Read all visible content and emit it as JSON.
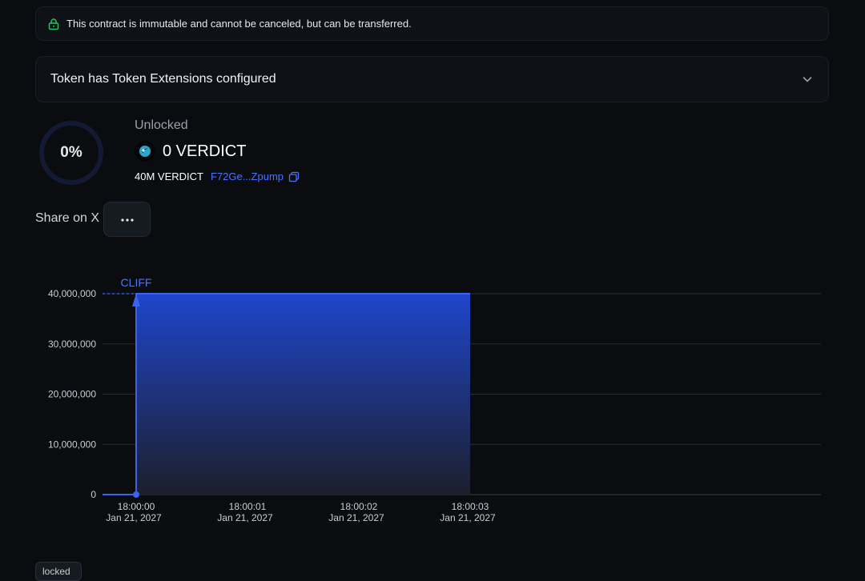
{
  "notice": {
    "text": "This contract is immutable and cannot be canceled, but can be transferred.",
    "icon": "lock-icon"
  },
  "extensions": {
    "label": "Token has Token Extensions configured",
    "icon": "chevron-down-icon"
  },
  "progress": {
    "percent_label": "0%",
    "value": 0
  },
  "unlocked": {
    "label": "Unlocked",
    "amount": "0 VERDICT",
    "total": "40M VERDICT",
    "address": "F72Ge...Zpump"
  },
  "share": {
    "label": "Share on X"
  },
  "chart_data": {
    "type": "area",
    "annotation": "CLIFF",
    "y_ticks": [
      "40,000,000",
      "30,000,000",
      "20,000,000",
      "10,000,000",
      "0"
    ],
    "ylim": [
      0,
      40000000
    ],
    "x_ticks": [
      {
        "time": "18:00:00",
        "date": "Jan 21, 2027"
      },
      {
        "time": "18:00:01",
        "date": "Jan 21, 2027"
      },
      {
        "time": "18:00:02",
        "date": "Jan 21, 2027"
      },
      {
        "time": "18:00:03",
        "date": "Jan 21, 2027"
      }
    ],
    "series": [
      {
        "x": [
          "18:00:00",
          "18:00:00",
          "18:00:03"
        ],
        "y": [
          0,
          40000000,
          40000000
        ]
      }
    ],
    "colors": {
      "area": "#2f55e0",
      "line": "#3b63f0",
      "grid": "#2a2e36",
      "axis_text": "#c9cdd3"
    }
  },
  "legend": {
    "locked_label": "locked"
  }
}
